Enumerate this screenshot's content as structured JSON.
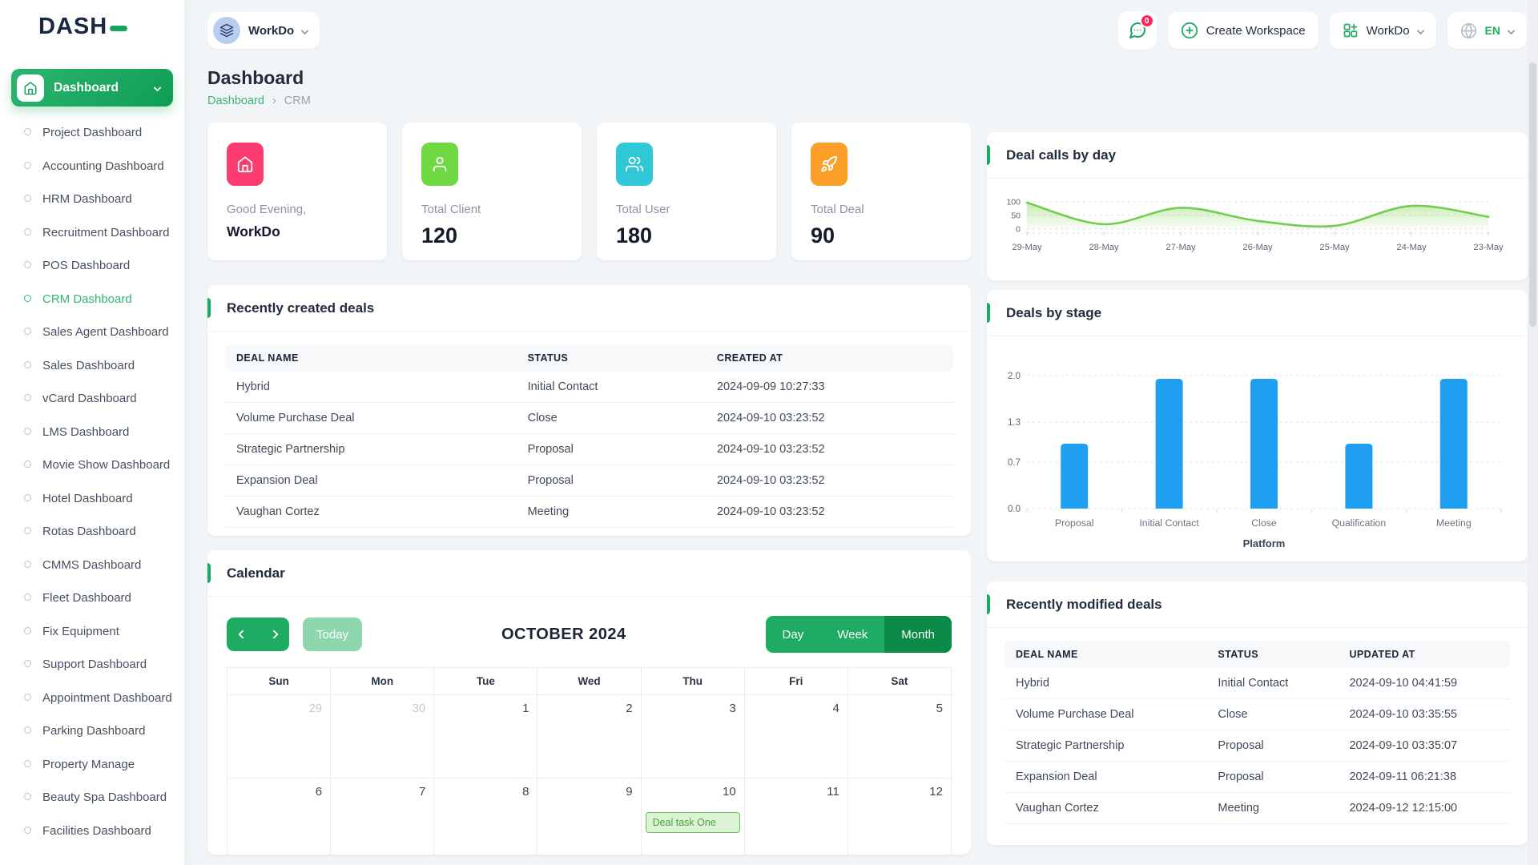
{
  "brand": {
    "name": "DASH"
  },
  "topbar": {
    "workspace_label": "WorkDo",
    "messages_badge": "0",
    "create_workspace": "Create Workspace",
    "account_label": "WorkDo",
    "language": "EN"
  },
  "sidebar": {
    "group_label": "Dashboard",
    "items": [
      {
        "label": "Project Dashboard",
        "active": false
      },
      {
        "label": "Accounting Dashboard",
        "active": false
      },
      {
        "label": "HRM Dashboard",
        "active": false
      },
      {
        "label": "Recruitment Dashboard",
        "active": false
      },
      {
        "label": "POS Dashboard",
        "active": false
      },
      {
        "label": "CRM Dashboard",
        "active": true
      },
      {
        "label": "Sales Agent Dashboard",
        "active": false
      },
      {
        "label": "Sales Dashboard",
        "active": false
      },
      {
        "label": "vCard Dashboard",
        "active": false
      },
      {
        "label": "LMS Dashboard",
        "active": false
      },
      {
        "label": "Movie Show Dashboard",
        "active": false
      },
      {
        "label": "Hotel Dashboard",
        "active": false
      },
      {
        "label": "Rotas Dashboard",
        "active": false
      },
      {
        "label": "CMMS Dashboard",
        "active": false
      },
      {
        "label": "Fleet Dashboard",
        "active": false
      },
      {
        "label": "Fix Equipment",
        "active": false
      },
      {
        "label": "Support Dashboard",
        "active": false
      },
      {
        "label": "Appointment Dashboard",
        "active": false
      },
      {
        "label": "Parking Dashboard",
        "active": false
      },
      {
        "label": "Property Manage",
        "active": false
      },
      {
        "label": "Beauty Spa Dashboard",
        "active": false
      },
      {
        "label": "Facilities Dashboard",
        "active": false
      }
    ]
  },
  "page": {
    "title": "Dashboard",
    "breadcrumb_root": "Dashboard",
    "breadcrumb_sep": "›",
    "breadcrumb_current": "CRM"
  },
  "stats": [
    {
      "label": "Good Evening,",
      "value": "WorkDo",
      "icon": "home-icon",
      "color": "#fc3c6e",
      "value_small": true
    },
    {
      "label": "Total Client",
      "value": "120",
      "icon": "user-icon",
      "color": "#6fd944",
      "value_small": false
    },
    {
      "label": "Total User",
      "value": "180",
      "icon": "users-icon",
      "color": "#30c8d6",
      "value_small": false
    },
    {
      "label": "Total Deal",
      "value": "90",
      "icon": "rocket-icon",
      "color": "#fb9f28",
      "value_small": false
    }
  ],
  "chart_data": [
    {
      "type": "area",
      "title": "Deal calls by day",
      "x": [
        "29-May",
        "28-May",
        "27-May",
        "26-May",
        "25-May",
        "24-May",
        "23-May"
      ],
      "values": [
        97,
        18,
        78,
        30,
        12,
        85,
        45
      ],
      "ylim": [
        0,
        100
      ],
      "yticks": [
        100,
        50,
        0
      ],
      "line_color": "#74cc52",
      "fill_color": "#8dd660",
      "grid": "dashed"
    },
    {
      "type": "bar",
      "title": "Deals by stage",
      "categories": [
        "Proposal",
        "Initial Contact",
        "Close",
        "Qualification",
        "Meeting"
      ],
      "values": [
        1,
        2,
        2,
        1,
        2
      ],
      "xlabel": "Platform",
      "ylim": [
        0,
        2
      ],
      "yticks": [
        {
          "label": "2.0",
          "value": 2
        },
        {
          "label": "1.3",
          "value": 1.3
        },
        {
          "label": "0.7",
          "value": 0.7
        },
        {
          "label": "0.0",
          "value": 0
        }
      ],
      "bar_color": "#1e9ff2",
      "grid": "dashed"
    }
  ],
  "panels": {
    "recent_created": {
      "title": "Recently created deals",
      "columns": [
        "DEAL NAME",
        "STATUS",
        "CREATED AT"
      ],
      "rows": [
        [
          "Hybrid",
          "Initial Contact",
          "2024-09-09 10:27:33"
        ],
        [
          "Volume Purchase Deal",
          "Close",
          "2024-09-10 03:23:52"
        ],
        [
          "Strategic Partnership",
          "Proposal",
          "2024-09-10 03:23:52"
        ],
        [
          "Expansion Deal",
          "Proposal",
          "2024-09-10 03:23:52"
        ],
        [
          "Vaughan Cortez",
          "Meeting",
          "2024-09-10 03:23:52"
        ]
      ]
    },
    "recent_modified": {
      "title": "Recently modified deals",
      "columns": [
        "DEAL NAME",
        "STATUS",
        "UPDATED AT"
      ],
      "rows": [
        [
          "Hybrid",
          "Initial Contact",
          "2024-09-10 04:41:59"
        ],
        [
          "Volume Purchase Deal",
          "Close",
          "2024-09-10 03:35:55"
        ],
        [
          "Strategic Partnership",
          "Proposal",
          "2024-09-10 03:35:07"
        ],
        [
          "Expansion Deal",
          "Proposal",
          "2024-09-11 06:21:38"
        ],
        [
          "Vaughan Cortez",
          "Meeting",
          "2024-09-12 12:15:00"
        ]
      ]
    },
    "calendar": {
      "title": "Calendar",
      "today_label": "Today",
      "month_title": "OCTOBER 2024",
      "views": [
        {
          "label": "Day",
          "active": false
        },
        {
          "label": "Week",
          "active": false
        },
        {
          "label": "Month",
          "active": true
        }
      ],
      "weekdays": [
        "Sun",
        "Mon",
        "Tue",
        "Wed",
        "Thu",
        "Fri",
        "Sat"
      ],
      "weeks": [
        [
          {
            "day": "29",
            "muted": true
          },
          {
            "day": "30",
            "muted": true
          },
          {
            "day": "1",
            "muted": false
          },
          {
            "day": "2",
            "muted": false
          },
          {
            "day": "3",
            "muted": false
          },
          {
            "day": "4",
            "muted": false
          },
          {
            "day": "5",
            "muted": false
          }
        ],
        [
          {
            "day": "6",
            "muted": false
          },
          {
            "day": "7",
            "muted": false
          },
          {
            "day": "8",
            "muted": false
          },
          {
            "day": "9",
            "muted": false
          },
          {
            "day": "10",
            "muted": false,
            "event": "Deal task One"
          },
          {
            "day": "11",
            "muted": false
          },
          {
            "day": "12",
            "muted": false
          }
        ]
      ]
    }
  }
}
